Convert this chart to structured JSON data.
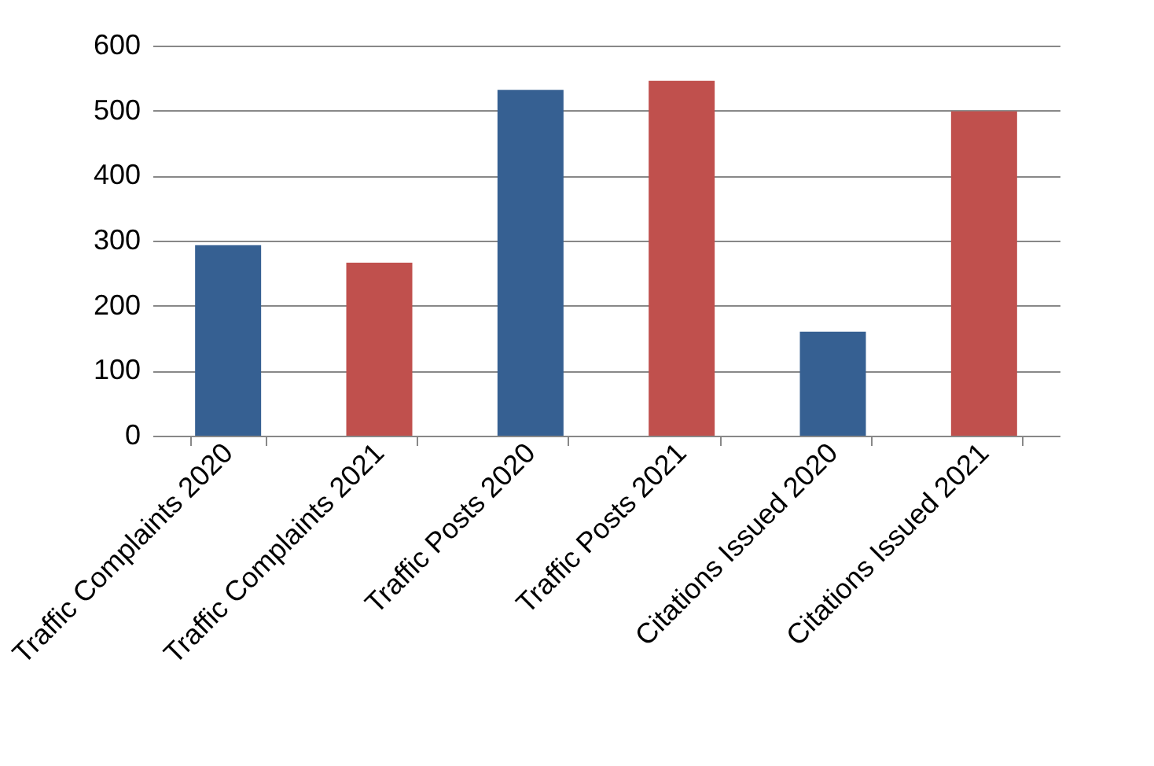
{
  "chart_data": {
    "type": "bar",
    "categories": [
      "Traffic Complaints 2020",
      "Traffic Complaints 2021",
      "Traffic Posts 2020",
      "Traffic Posts 2021",
      "Citations Issued 2020",
      "Citations Issued 2021"
    ],
    "values": [
      293,
      266,
      532,
      546,
      160,
      499
    ],
    "colors": [
      "#366092",
      "#c0504d",
      "#366092",
      "#c0504d",
      "#366092",
      "#c0504d"
    ],
    "ylim": [
      0,
      600
    ],
    "yticks": [
      0,
      100,
      200,
      300,
      400,
      500,
      600
    ],
    "grid": "y"
  }
}
